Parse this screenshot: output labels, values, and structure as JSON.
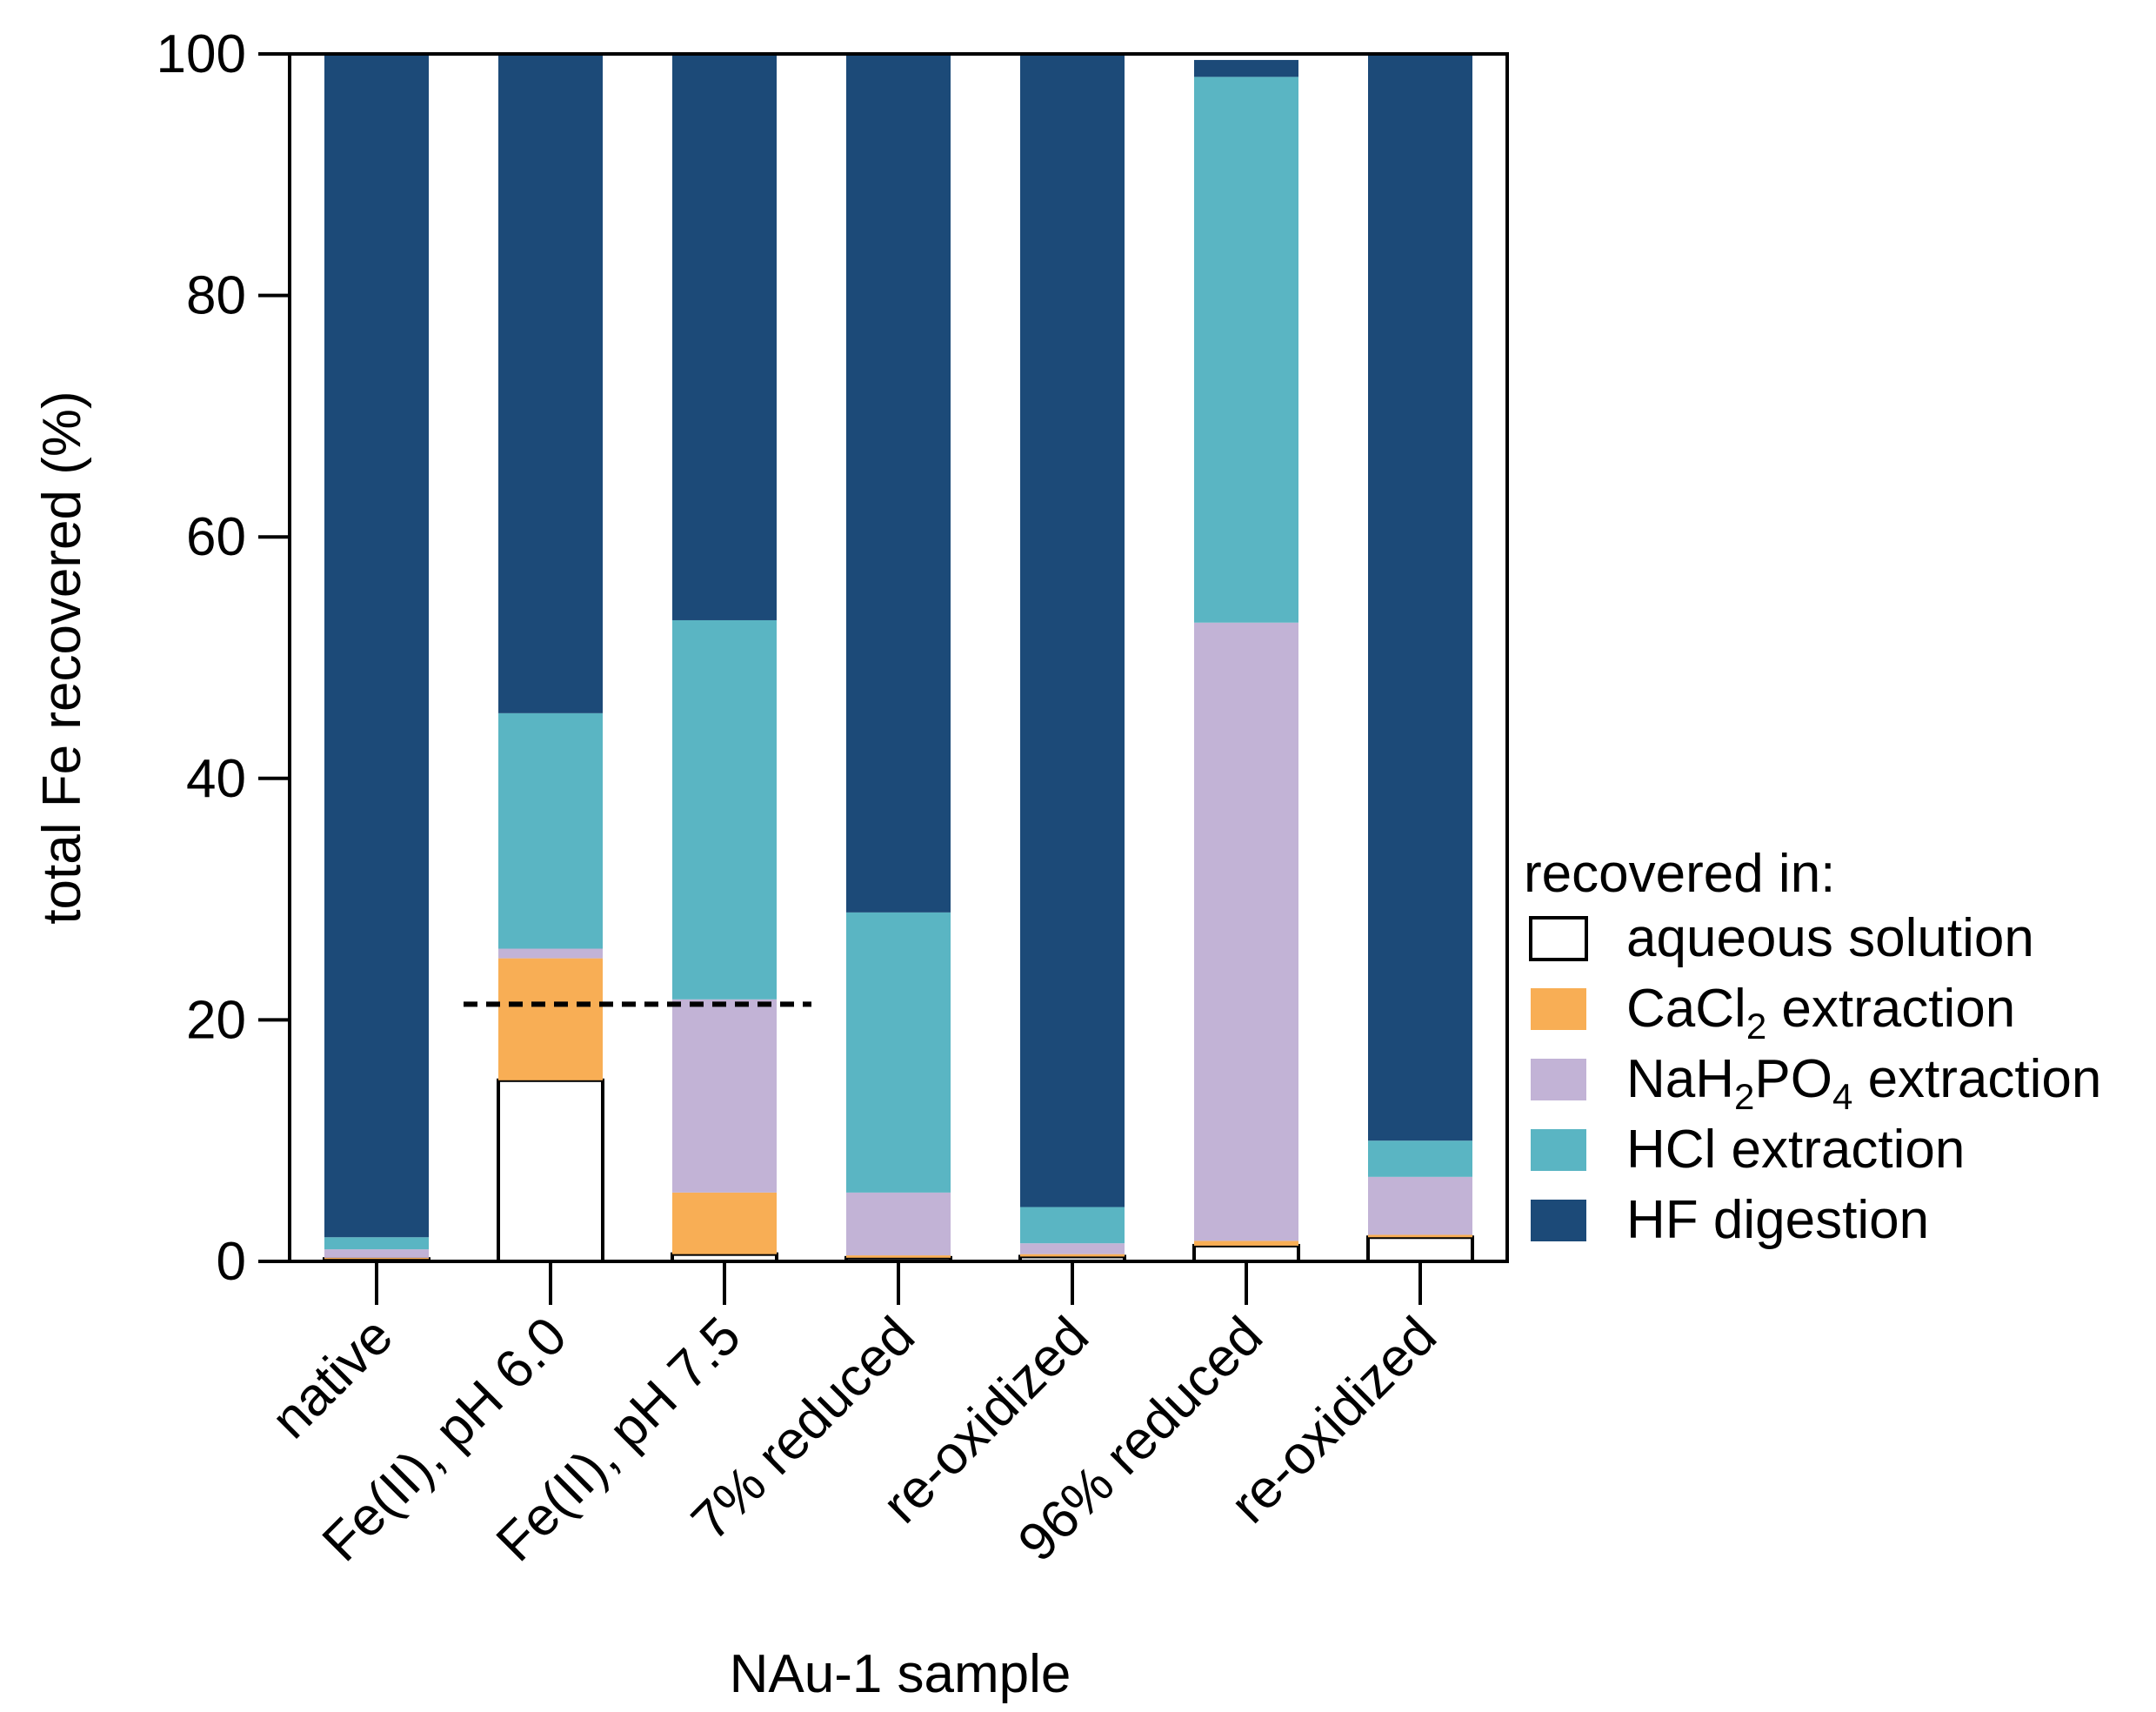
{
  "chart_data": {
    "type": "bar",
    "stacked": true,
    "title": "",
    "xlabel": "NAu-1 sample",
    "ylabel": "total Fe recovered (%)",
    "ylim": [
      0,
      100
    ],
    "yticks": [
      "0",
      "20",
      "40",
      "60",
      "80",
      "100"
    ],
    "grid": false,
    "categories": [
      "native",
      "Fe(II), pH 6.0",
      "Fe(II), pH 7.5",
      "7% reduced",
      "re-oxidized",
      "96% reduced",
      "re-oxidized"
    ],
    "series": [
      {
        "name": "aqueous solution",
        "color": "#ffffff",
        "outline": "#000000",
        "values": [
          0.2,
          15.0,
          0.6,
          0.3,
          0.4,
          1.3,
          2.0
        ]
      },
      {
        "name": "CaCl2 extraction",
        "color": "#f8ae55",
        "values": [
          0.1,
          10.1,
          5.1,
          0.2,
          0.2,
          0.4,
          0.2
        ]
      },
      {
        "name": "NaH2PO4 extraction",
        "color": "#c2b3d6",
        "values": [
          0.7,
          0.8,
          16.0,
          5.2,
          0.9,
          51.2,
          4.8
        ]
      },
      {
        "name": "HCl extraction",
        "color": "#5ab5c3",
        "values": [
          1.0,
          19.5,
          31.4,
          23.2,
          3.0,
          45.2,
          3.0
        ]
      },
      {
        "name": "HF digestion",
        "color": "#1c4a78",
        "values": [
          98.0,
          54.6,
          46.9,
          71.1,
          95.5,
          1.4,
          90.0
        ]
      }
    ],
    "annotations": [
      {
        "type": "dashed-line",
        "y": 21.3,
        "span_categories": [
          1,
          2
        ]
      }
    ],
    "legend": {
      "title": "recovered in:",
      "position": "right",
      "entries": [
        {
          "name": "aqueous solution",
          "base": "aqueous solution",
          "sub": "",
          "rest": ""
        },
        {
          "name": "CaCl2 extraction",
          "base": "CaCl",
          "sub": "2",
          "rest": " extraction"
        },
        {
          "name": "NaH2PO4 extraction",
          "base": "NaH",
          "sub": "2",
          "mid": "PO",
          "sub2": "4",
          "rest": " extraction"
        },
        {
          "name": "HCl extraction",
          "base": "HCl extraction",
          "sub": "",
          "rest": ""
        },
        {
          "name": "HF digestion",
          "base": "HF digestion",
          "sub": "",
          "rest": ""
        }
      ]
    }
  }
}
